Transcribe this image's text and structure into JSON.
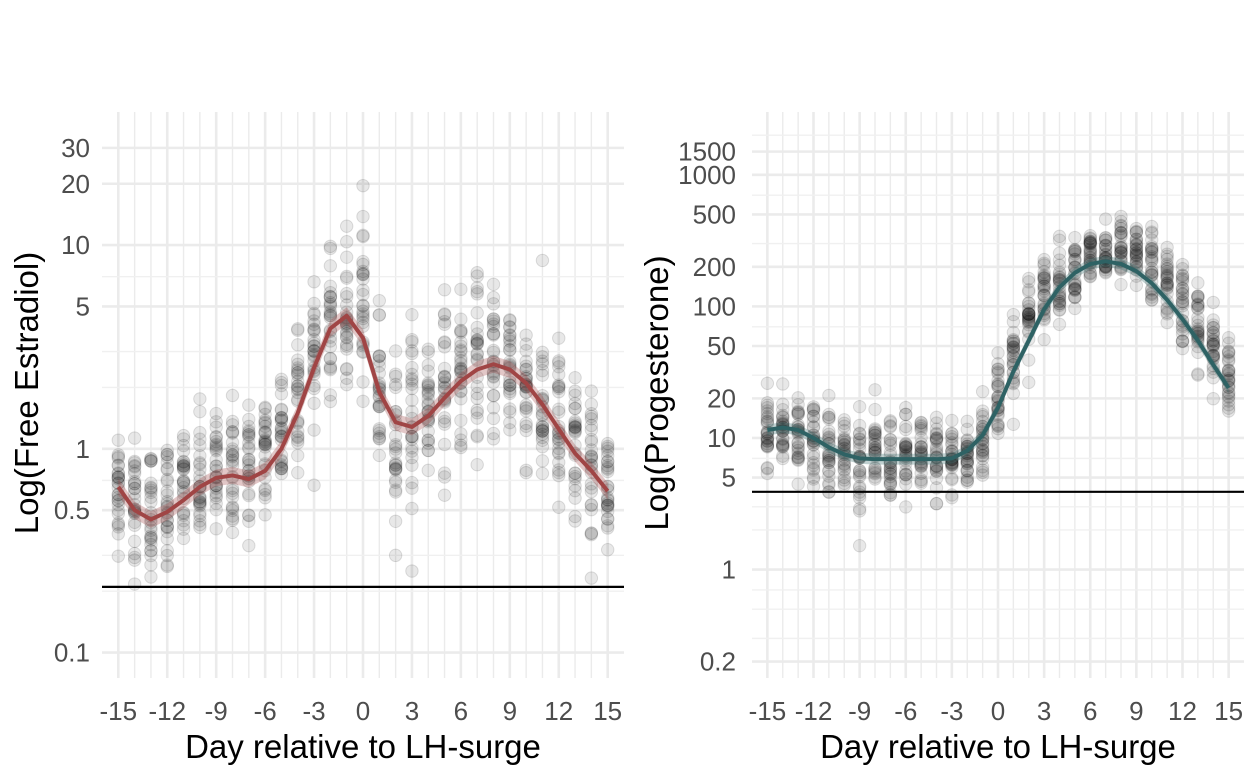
{
  "chart_data": [
    {
      "type": "scatter",
      "title": "",
      "xlabel": "Day relative to LH-surge",
      "ylabel": "Log(Free Estradiol)",
      "y_scale": "log",
      "xlim": [
        -16,
        16
      ],
      "ylim": [
        0.075,
        45
      ],
      "x_ticks": [
        -15,
        -12,
        -9,
        -6,
        -3,
        0,
        3,
        6,
        9,
        12,
        15
      ],
      "y_ticks": [
        0.1,
        0.5,
        1,
        5,
        10,
        20,
        30
      ],
      "grid": true,
      "reference_line_y": 0.21,
      "smooth_color": "#a04545",
      "point_color": "#000000",
      "points_x": [
        -15,
        -14,
        -13,
        -12,
        -11,
        -10,
        -9,
        -8,
        -7,
        -6,
        -5,
        -4,
        -3,
        -2,
        -1,
        0,
        1,
        2,
        3,
        4,
        5,
        6,
        7,
        8,
        9,
        10,
        11,
        12,
        13,
        14,
        15
      ],
      "points_y_center": [
        0.65,
        0.55,
        0.5,
        0.55,
        0.62,
        0.68,
        0.75,
        0.8,
        0.8,
        0.9,
        1.3,
        2.0,
        3.1,
        4.1,
        4.4,
        4.8,
        1.8,
        1.3,
        1.4,
        1.7,
        2.1,
        2.4,
        2.6,
        2.7,
        2.5,
        2.1,
        1.6,
        1.2,
        0.9,
        0.75,
        0.6
      ],
      "points_spread_log10": [
        0.3,
        0.28,
        0.3,
        0.28,
        0.28,
        0.3,
        0.28,
        0.3,
        0.3,
        0.3,
        0.35,
        0.35,
        0.35,
        0.3,
        0.3,
        0.4,
        0.42,
        0.4,
        0.4,
        0.35,
        0.38,
        0.38,
        0.35,
        0.35,
        0.35,
        0.38,
        0.4,
        0.4,
        0.38,
        0.35,
        0.3
      ],
      "smooth_x": [
        -15,
        -14,
        -13,
        -12,
        -11,
        -10,
        -9,
        -8,
        -7,
        -6,
        -5,
        -4,
        -3,
        -2,
        -1,
        0,
        1,
        2,
        3,
        4,
        5,
        6,
        7,
        8,
        9,
        10,
        11,
        12,
        13,
        14,
        15
      ],
      "smooth_y": [
        0.65,
        0.5,
        0.45,
        0.49,
        0.56,
        0.65,
        0.72,
        0.74,
        0.71,
        0.78,
        1.0,
        1.5,
        2.5,
        3.9,
        4.5,
        3.5,
        1.9,
        1.35,
        1.28,
        1.45,
        1.78,
        2.15,
        2.45,
        2.6,
        2.45,
        2.1,
        1.65,
        1.25,
        0.95,
        0.78,
        0.62
      ]
    },
    {
      "type": "scatter",
      "title": "",
      "xlabel": "Day relative to LH-surge",
      "ylabel": "Log(Progesterone)",
      "y_scale": "log",
      "xlim": [
        -16,
        16
      ],
      "ylim": [
        0.15,
        3000
      ],
      "x_ticks": [
        -15,
        -12,
        -9,
        -6,
        -3,
        0,
        3,
        6,
        9,
        12,
        15
      ],
      "y_ticks": [
        0.2,
        1,
        5,
        10,
        20,
        50,
        100,
        200,
        500,
        1000,
        1500
      ],
      "grid": true,
      "reference_line_y": 3.9,
      "smooth_color": "#2e6264",
      "point_color": "#000000",
      "points_x": [
        -15,
        -14,
        -13,
        -12,
        -11,
        -10,
        -9,
        -8,
        -7,
        -6,
        -5,
        -4,
        -3,
        -2,
        -1,
        0,
        1,
        2,
        3,
        4,
        5,
        6,
        7,
        8,
        9,
        10,
        11,
        12,
        13,
        14,
        15
      ],
      "points_y_center": [
        12,
        12,
        11,
        10,
        8.5,
        7.5,
        7,
        7,
        7,
        7,
        7,
        7,
        7,
        7,
        10,
        22,
        45,
        80,
        120,
        160,
        200,
        230,
        240,
        250,
        240,
        200,
        150,
        100,
        70,
        45,
        30
      ],
      "points_spread_log10": [
        0.25,
        0.25,
        0.25,
        0.3,
        0.3,
        0.3,
        0.3,
        0.3,
        0.3,
        0.3,
        0.3,
        0.3,
        0.3,
        0.3,
        0.3,
        0.35,
        0.35,
        0.3,
        0.28,
        0.25,
        0.22,
        0.22,
        0.22,
        0.22,
        0.22,
        0.25,
        0.28,
        0.3,
        0.3,
        0.32,
        0.32
      ],
      "smooth_x": [
        -15,
        -14,
        -13,
        -12,
        -11,
        -10,
        -9,
        -8,
        -7,
        -6,
        -5,
        -4,
        -3,
        -2,
        -1,
        0,
        1,
        2,
        3,
        4,
        5,
        6,
        7,
        8,
        9,
        10,
        11,
        12,
        13,
        14,
        15
      ],
      "smooth_y": [
        11.5,
        12,
        11.5,
        10,
        8.5,
        7.5,
        7,
        6.9,
        6.9,
        6.9,
        6.9,
        6.9,
        7,
        8,
        10.5,
        17,
        32,
        55,
        95,
        140,
        180,
        210,
        220,
        210,
        185,
        150,
        112,
        80,
        55,
        36,
        24
      ]
    }
  ]
}
